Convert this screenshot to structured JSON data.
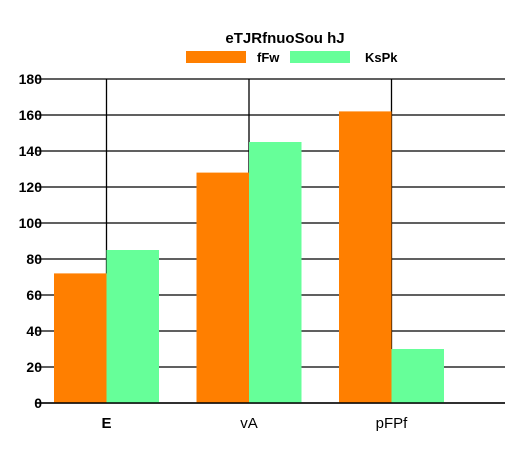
{
  "chart_data": {
    "type": "bar",
    "title": "eTJRfnuoSou hJ",
    "xlabel": "",
    "ylabel": "",
    "categories": [
      "E",
      "vA",
      "pFPf"
    ],
    "series": [
      {
        "name": "fFw",
        "color": "#ff7f00",
        "values": [
          72,
          128,
          162
        ]
      },
      {
        "name": "KsPk",
        "color": "#66ff99",
        "values": [
          85,
          145,
          30
        ]
      }
    ],
    "ylim": [
      0,
      180
    ],
    "yticks": [
      0,
      20,
      40,
      60,
      80,
      100,
      120,
      140,
      160,
      180
    ],
    "grid": true,
    "legend_position": "top-center"
  }
}
